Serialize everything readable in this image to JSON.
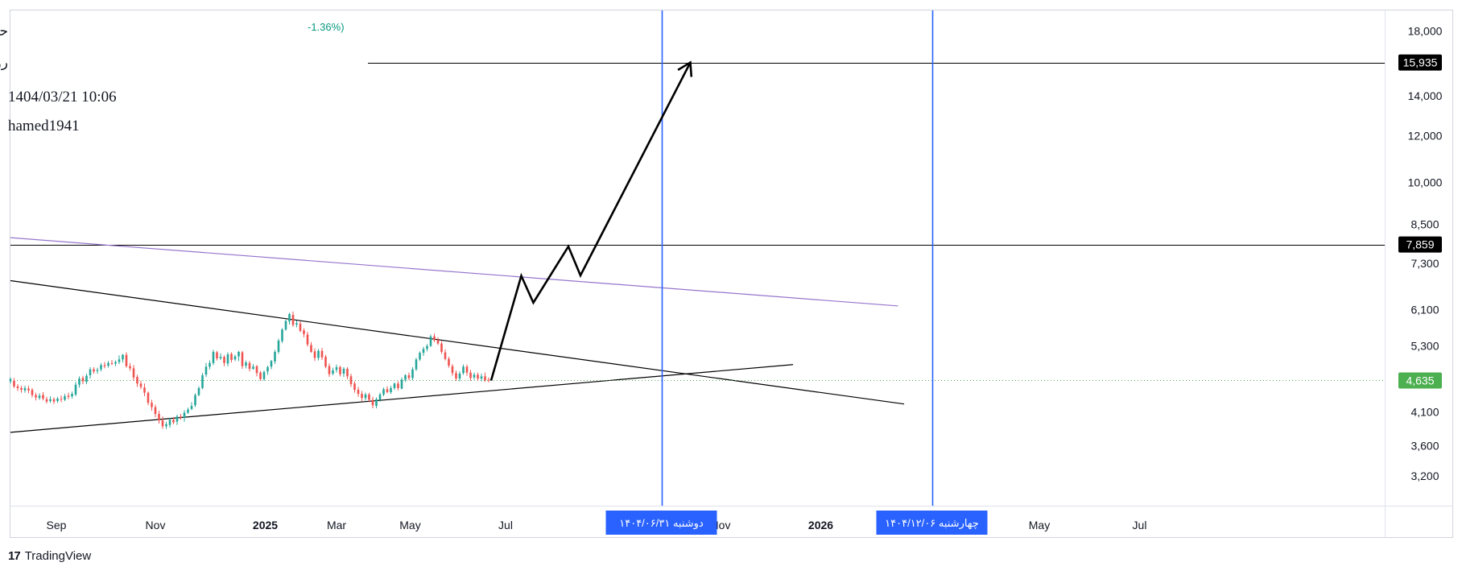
{
  "header": {
    "title": "حآسا (آسیا سیر ارس) / حمل و نقل انبارداری و ارتباطات",
    "subtitle": "روزانه / آخرین قیمت / سود نقدی و افزایش سرمایه با احتساب آورده",
    "change": "-1.36%)",
    "datetime": "1404/03/21 10:06",
    "author": "hamed1941"
  },
  "footer": {
    "brand_icon": "17",
    "brand": "TradingView"
  },
  "colors": {
    "up": "#26a69a",
    "down": "#ef5350",
    "vline": "#2962ff",
    "purple": "#9575cd",
    "current": "#4caf50"
  },
  "chart_data": {
    "type": "candlestick",
    "y_scale": "log",
    "y_range": [
      2850,
      19500
    ],
    "x_range": [
      0,
      1070
    ],
    "y_ticks": [
      {
        "value": 18000,
        "label": "18,000"
      },
      {
        "value": 14000,
        "label": "14,000"
      },
      {
        "value": 12000,
        "label": "12,000"
      },
      {
        "value": 10000,
        "label": "10,000"
      },
      {
        "value": 8500,
        "label": "8,500"
      },
      {
        "value": 7300,
        "label": "7,300"
      },
      {
        "value": 6100,
        "label": "6,100"
      },
      {
        "value": 5300,
        "label": "5,300"
      },
      {
        "value": 4100,
        "label": "4,100"
      },
      {
        "value": 3600,
        "label": "3,600"
      },
      {
        "value": 3200,
        "label": "3,200"
      }
    ],
    "x_ticks": [
      {
        "x": 38,
        "label": "Sep",
        "bold": false
      },
      {
        "x": 120,
        "label": "Nov",
        "bold": false
      },
      {
        "x": 211,
        "label": "2025",
        "bold": true
      },
      {
        "x": 270,
        "label": "Mar",
        "bold": false
      },
      {
        "x": 331,
        "label": "May",
        "bold": false
      },
      {
        "x": 410,
        "label": "Jul",
        "bold": false
      },
      {
        "x": 588,
        "label": "Nov",
        "bold": false
      },
      {
        "x": 671,
        "label": "2026",
        "bold": true
      },
      {
        "x": 852,
        "label": "May",
        "bold": false
      },
      {
        "x": 935,
        "label": "Jul",
        "bold": false
      }
    ],
    "price_badges": [
      {
        "value": 15935,
        "label": "15,935",
        "style": "dark"
      },
      {
        "value": 7859,
        "label": "7,859",
        "style": "dark"
      },
      {
        "value": 4635,
        "label": "4,635",
        "style": "green"
      }
    ],
    "current_price": 4635,
    "horizontal_levels": [
      {
        "value": 15935,
        "from_x": 296
      },
      {
        "value": 7859,
        "from_x": 0
      }
    ],
    "vertical_lines": [
      {
        "x": 539,
        "label": "دوشنبه ۱۴۰۴/۰۶/۳۱"
      },
      {
        "x": 763,
        "label": "چهارشنبه ۱۴۰۴/۱۲/۰۶"
      }
    ],
    "trend_lines": [
      {
        "name": "resistance",
        "color": "#000000",
        "points": [
          [
            0,
            6830
          ],
          [
            740,
            4230
          ]
        ]
      },
      {
        "name": "support",
        "color": "#000000",
        "points": [
          [
            0,
            3790
          ],
          [
            648,
            4930
          ]
        ]
      },
      {
        "name": "upper-channel",
        "color": "#9575cd",
        "points": [
          [
            0,
            8070
          ],
          [
            735,
            6190
          ]
        ]
      }
    ],
    "projection_path": [
      [
        398,
        4635
      ],
      [
        423,
        6960
      ],
      [
        433,
        6270
      ],
      [
        462,
        7800
      ],
      [
        472,
        6970
      ],
      [
        563,
        15935
      ]
    ],
    "candles": [
      [
        0,
        4620,
        4660,
        4690,
        4580
      ],
      [
        3,
        4630,
        4530,
        4680,
        4500
      ],
      [
        6,
        4530,
        4500,
        4570,
        4450
      ],
      [
        9,
        4500,
        4470,
        4540,
        4420
      ],
      [
        12,
        4460,
        4500,
        4540,
        4420
      ],
      [
        15,
        4490,
        4460,
        4540,
        4410
      ],
      [
        18,
        4470,
        4380,
        4500,
        4340
      ],
      [
        21,
        4380,
        4340,
        4420,
        4290
      ],
      [
        24,
        4330,
        4370,
        4410,
        4300
      ],
      [
        27,
        4380,
        4320,
        4430,
        4290
      ],
      [
        30,
        4310,
        4270,
        4350,
        4240
      ],
      [
        33,
        4280,
        4310,
        4360,
        4250
      ],
      [
        36,
        4310,
        4270,
        4340,
        4230
      ],
      [
        39,
        4280,
        4320,
        4350,
        4250
      ],
      [
        42,
        4320,
        4310,
        4370,
        4260
      ],
      [
        45,
        4300,
        4360,
        4400,
        4280
      ],
      [
        48,
        4370,
        4350,
        4420,
        4310
      ],
      [
        51,
        4360,
        4400,
        4440,
        4320
      ],
      [
        54,
        4390,
        4560,
        4610,
        4360
      ],
      [
        57,
        4560,
        4670,
        4710,
        4510
      ],
      [
        60,
        4680,
        4620,
        4720,
        4570
      ],
      [
        63,
        4610,
        4720,
        4760,
        4570
      ],
      [
        66,
        4730,
        4840,
        4880,
        4670
      ],
      [
        69,
        4840,
        4800,
        4880,
        4760
      ],
      [
        72,
        4810,
        4830,
        4870,
        4760
      ],
      [
        75,
        4840,
        4920,
        4960,
        4800
      ],
      [
        78,
        4920,
        4900,
        4980,
        4860
      ],
      [
        81,
        4910,
        4960,
        5000,
        4870
      ],
      [
        84,
        4960,
        4950,
        5020,
        4920
      ],
      [
        87,
        4950,
        4980,
        5010,
        4900
      ],
      [
        90,
        4980,
        5030,
        5110,
        4940
      ],
      [
        93,
        5030,
        5120,
        5140,
        4970
      ],
      [
        96,
        5120,
        4900,
        5170,
        4870
      ],
      [
        99,
        4900,
        4860,
        4960,
        4810
      ],
      [
        102,
        4860,
        4690,
        4920,
        4630
      ],
      [
        105,
        4700,
        4580,
        4740,
        4520
      ],
      [
        108,
        4580,
        4520,
        4630,
        4480
      ],
      [
        111,
        4510,
        4420,
        4580,
        4360
      ],
      [
        114,
        4420,
        4250,
        4440,
        4210
      ],
      [
        117,
        4250,
        4180,
        4300,
        4120
      ],
      [
        120,
        4180,
        4070,
        4220,
        4020
      ],
      [
        123,
        4070,
        3970,
        4120,
        3920
      ],
      [
        126,
        3970,
        3880,
        4030,
        3840
      ],
      [
        129,
        3880,
        3910,
        3950,
        3840
      ],
      [
        132,
        3900,
        3980,
        4010,
        3860
      ],
      [
        135,
        3980,
        3940,
        4020,
        3910
      ],
      [
        138,
        3950,
        4030,
        4060,
        3900
      ],
      [
        141,
        4030,
        4010,
        4070,
        3980
      ],
      [
        144,
        4010,
        4090,
        4130,
        3950
      ],
      [
        147,
        4090,
        4140,
        4170,
        4070
      ],
      [
        150,
        4150,
        4200,
        4260,
        4130
      ],
      [
        153,
        4210,
        4380,
        4410,
        4180
      ],
      [
        156,
        4380,
        4500,
        4530,
        4360
      ],
      [
        159,
        4500,
        4730,
        4770,
        4480
      ],
      [
        162,
        4740,
        4890,
        4960,
        4700
      ],
      [
        165,
        4890,
        4960,
        5010,
        4840
      ],
      [
        168,
        4960,
        5180,
        5220,
        4920
      ],
      [
        171,
        5170,
        5050,
        5200,
        5010
      ],
      [
        174,
        5050,
        5080,
        5150,
        5020
      ],
      [
        177,
        5080,
        4960,
        5110,
        4900
      ],
      [
        180,
        4950,
        5130,
        5170,
        4900
      ],
      [
        183,
        5140,
        5020,
        5170,
        4970
      ],
      [
        186,
        5030,
        5090,
        5120,
        5000
      ],
      [
        189,
        5090,
        5180,
        5200,
        5000
      ],
      [
        192,
        5170,
        4900,
        5200,
        4850
      ],
      [
        195,
        4910,
        4970,
        5010,
        4860
      ],
      [
        198,
        4960,
        4850,
        5000,
        4800
      ],
      [
        201,
        4850,
        4890,
        4940,
        4830
      ],
      [
        204,
        4900,
        4770,
        4920,
        4710
      ],
      [
        207,
        4780,
        4660,
        4810,
        4630
      ],
      [
        210,
        4660,
        4790,
        4820,
        4630
      ],
      [
        213,
        4800,
        4880,
        4910,
        4740
      ],
      [
        216,
        4890,
        5000,
        5020,
        4840
      ],
      [
        219,
        4990,
        5180,
        5220,
        4940
      ],
      [
        222,
        5180,
        5410,
        5450,
        5140
      ],
      [
        225,
        5400,
        5650,
        5680,
        5360
      ],
      [
        228,
        5650,
        5840,
        5870,
        5620
      ],
      [
        231,
        5830,
        6000,
        6030,
        5760
      ],
      [
        234,
        5980,
        5750,
        6060,
        5710
      ],
      [
        237,
        5760,
        5790,
        5850,
        5700
      ],
      [
        240,
        5780,
        5620,
        5830,
        5590
      ],
      [
        243,
        5630,
        5550,
        5680,
        5480
      ],
      [
        246,
        5540,
        5330,
        5600,
        5290
      ],
      [
        249,
        5320,
        5180,
        5380,
        5160
      ],
      [
        252,
        5190,
        5060,
        5250,
        5000
      ],
      [
        255,
        5060,
        5200,
        5240,
        5010
      ],
      [
        258,
        5200,
        5070,
        5260,
        5020
      ],
      [
        261,
        5080,
        4890,
        5120,
        4860
      ],
      [
        264,
        4900,
        4750,
        4950,
        4700
      ],
      [
        267,
        4760,
        4820,
        4870,
        4730
      ],
      [
        270,
        4830,
        4880,
        4930,
        4780
      ],
      [
        273,
        4880,
        4750,
        4910,
        4710
      ],
      [
        276,
        4760,
        4850,
        4880,
        4700
      ],
      [
        279,
        4850,
        4710,
        4880,
        4660
      ],
      [
        282,
        4710,
        4570,
        4760,
        4520
      ],
      [
        285,
        4580,
        4470,
        4620,
        4420
      ],
      [
        288,
        4470,
        4400,
        4520,
        4350
      ],
      [
        291,
        4400,
        4330,
        4450,
        4280
      ],
      [
        294,
        4330,
        4390,
        4420,
        4290
      ],
      [
        297,
        4390,
        4300,
        4420,
        4260
      ],
      [
        300,
        4300,
        4210,
        4350,
        4160
      ],
      [
        303,
        4200,
        4310,
        4340,
        4160
      ],
      [
        306,
        4300,
        4390,
        4420,
        4270
      ],
      [
        309,
        4390,
        4480,
        4510,
        4360
      ],
      [
        312,
        4480,
        4430,
        4530,
        4410
      ],
      [
        315,
        4430,
        4500,
        4540,
        4400
      ],
      [
        318,
        4500,
        4580,
        4600,
        4470
      ],
      [
        321,
        4580,
        4500,
        4620,
        4460
      ],
      [
        324,
        4490,
        4650,
        4690,
        4480
      ],
      [
        327,
        4650,
        4730,
        4750,
        4610
      ],
      [
        330,
        4730,
        4680,
        4780,
        4640
      ],
      [
        333,
        4680,
        4840,
        4880,
        4640
      ],
      [
        336,
        4840,
        5030,
        5060,
        4810
      ],
      [
        339,
        5030,
        5160,
        5190,
        5000
      ],
      [
        342,
        5160,
        5240,
        5280,
        5100
      ],
      [
        345,
        5240,
        5300,
        5340,
        5190
      ],
      [
        348,
        5300,
        5500,
        5540,
        5280
      ],
      [
        351,
        5500,
        5420,
        5560,
        5380
      ],
      [
        354,
        5420,
        5350,
        5480,
        5320
      ],
      [
        357,
        5350,
        5180,
        5400,
        5140
      ],
      [
        360,
        5170,
        5040,
        5230,
        5010
      ],
      [
        363,
        5040,
        4910,
        5080,
        4870
      ],
      [
        366,
        4900,
        4770,
        4940,
        4720
      ],
      [
        369,
        4770,
        4670,
        4820,
        4630
      ],
      [
        372,
        4670,
        4760,
        4800,
        4620
      ],
      [
        375,
        4770,
        4890,
        4930,
        4740
      ],
      [
        378,
        4890,
        4780,
        4930,
        4720
      ],
      [
        381,
        4780,
        4680,
        4830,
        4630
      ],
      [
        384,
        4690,
        4740,
        4780,
        4650
      ],
      [
        387,
        4740,
        4670,
        4780,
        4630
      ],
      [
        390,
        4670,
        4710,
        4760,
        4620
      ],
      [
        393,
        4710,
        4640,
        4780,
        4610
      ],
      [
        396,
        4650,
        4635,
        4690,
        4600
      ]
    ]
  }
}
